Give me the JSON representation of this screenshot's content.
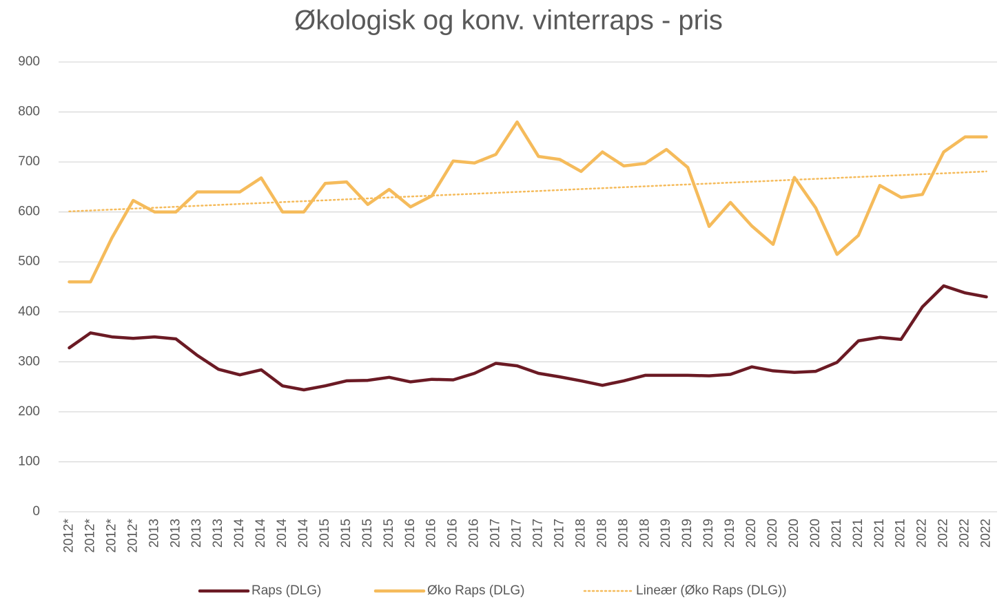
{
  "chart_data": {
    "type": "line",
    "title": "Økologisk og konv. vinterraps - pris",
    "categories": [
      "2012*",
      "2012*",
      "2012*",
      "2012*",
      "2013",
      "2013",
      "2013",
      "2013",
      "2014",
      "2014",
      "2014",
      "2014",
      "2015",
      "2015",
      "2015",
      "2015",
      "2016",
      "2016",
      "2016",
      "2016",
      "2017",
      "2017",
      "2017",
      "2017",
      "2018",
      "2018",
      "2018",
      "2018",
      "2019",
      "2019",
      "2019",
      "2019",
      "2020",
      "2020",
      "2020",
      "2020",
      "2021",
      "2021",
      "2021",
      "2021",
      "2022",
      "2022",
      "2022",
      "2022"
    ],
    "series": [
      {
        "name": "Raps (DLG)",
        "color": "#6b1a24",
        "style": "solid",
        "values": [
          328,
          358,
          350,
          347,
          350,
          346,
          313,
          285,
          274,
          284,
          252,
          244,
          252,
          262,
          263,
          269,
          260,
          265,
          264,
          277,
          297,
          292,
          277,
          270,
          262,
          253,
          262,
          273,
          273,
          273,
          272,
          275,
          290,
          282,
          279,
          281,
          299,
          342,
          349,
          345,
          410,
          452,
          438,
          430
        ]
      },
      {
        "name": "Øko Raps (DLG)",
        "color": "#f5bb5b",
        "style": "solid",
        "values": [
          460,
          460,
          548,
          623,
          600,
          600,
          640,
          640,
          640,
          668,
          600,
          600,
          657,
          660,
          615,
          645,
          610,
          632,
          702,
          698,
          715,
          780,
          711,
          705,
          681,
          720,
          692,
          697,
          725,
          689,
          571,
          619,
          572,
          535,
          669,
          608,
          515,
          553,
          653,
          629,
          635,
          720,
          750,
          750
        ]
      },
      {
        "name": "Lineær (Øko Raps (DLG))",
        "color": "#f5bb5b",
        "style": "dotted",
        "values": [
          601,
          602.9,
          604.7,
          606.6,
          608.4,
          610.3,
          612.2,
          614.0,
          615.9,
          617.7,
          619.6,
          621.5,
          623.3,
          625.2,
          627.0,
          628.9,
          630.8,
          632.6,
          634.5,
          636.3,
          638.2,
          640.1,
          641.9,
          643.8,
          645.7,
          647.5,
          649.4,
          651.2,
          653.1,
          655.0,
          656.8,
          658.7,
          660.5,
          662.4,
          664.3,
          666.1,
          668.0,
          669.8,
          671.7,
          673.6,
          675.4,
          677.3,
          679.1,
          681
        ]
      }
    ],
    "ylim": [
      0,
      900
    ],
    "yticks": [
      0,
      100,
      200,
      300,
      400,
      500,
      600,
      700,
      800,
      900
    ],
    "grid": true,
    "legend": "bottom"
  }
}
